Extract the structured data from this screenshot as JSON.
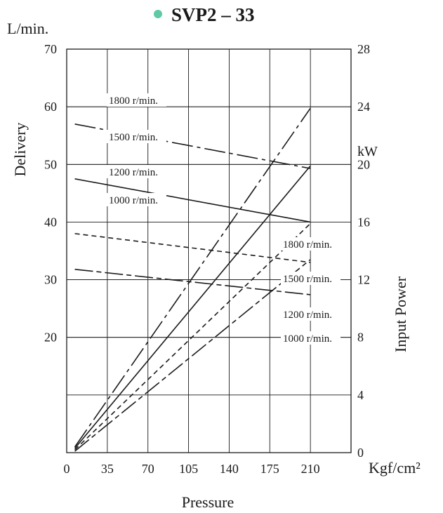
{
  "chart_data": {
    "type": "line",
    "title": "SVP2 – 33",
    "title_marker_color": "#5fc9a8",
    "xlabel": "Pressure",
    "x_unit": "Kgf/cm²",
    "x_ticks": [
      0,
      35,
      70,
      105,
      140,
      175,
      210
    ],
    "xlim": [
      0,
      245
    ],
    "left_axis": {
      "label": "Delivery",
      "unit": "L/min.",
      "ticks": [
        20,
        30,
        40,
        50,
        60,
        70
      ],
      "ylim": [
        0,
        70
      ]
    },
    "right_axis": {
      "label": "Input Power",
      "unit": "kW",
      "ticks": [
        0,
        4,
        8,
        12,
        16,
        20,
        24,
        28
      ],
      "ylim": [
        0,
        28
      ]
    },
    "grid": true,
    "delivery_series": [
      {
        "name": "1800 r/min.",
        "axis": "left",
        "dash": "long-dash-dot",
        "x": [
          7,
          210
        ],
        "y": [
          57,
          49.3
        ]
      },
      {
        "name": "1500 r/min.",
        "axis": "left",
        "dash": "solid",
        "x": [
          7,
          210
        ],
        "y": [
          47.5,
          40
        ]
      },
      {
        "name": "1200 r/min.",
        "axis": "left",
        "dash": "dashed",
        "x": [
          7,
          210
        ],
        "y": [
          38,
          33
        ]
      },
      {
        "name": "1000 r/min.",
        "axis": "left",
        "dash": "long-dash-short",
        "x": [
          7,
          210
        ],
        "y": [
          31.8,
          27.4
        ]
      }
    ],
    "power_series": [
      {
        "name": "1800 r/min.",
        "axis": "right",
        "dash": "long-dash-dot",
        "x": [
          7,
          210
        ],
        "y": [
          0.4,
          23.9
        ]
      },
      {
        "name": "1500 r/min.",
        "axis": "right",
        "dash": "solid",
        "x": [
          7,
          210
        ],
        "y": [
          0.3,
          19.9
        ]
      },
      {
        "name": "1200 r/min.",
        "axis": "right",
        "dash": "dashed",
        "x": [
          7,
          210
        ],
        "y": [
          0.2,
          15.9
        ]
      },
      {
        "name": "1000 r/min.",
        "axis": "right",
        "dash": "long-dash-short",
        "x": [
          7,
          210
        ],
        "y": [
          0.1,
          13.4
        ]
      }
    ]
  }
}
